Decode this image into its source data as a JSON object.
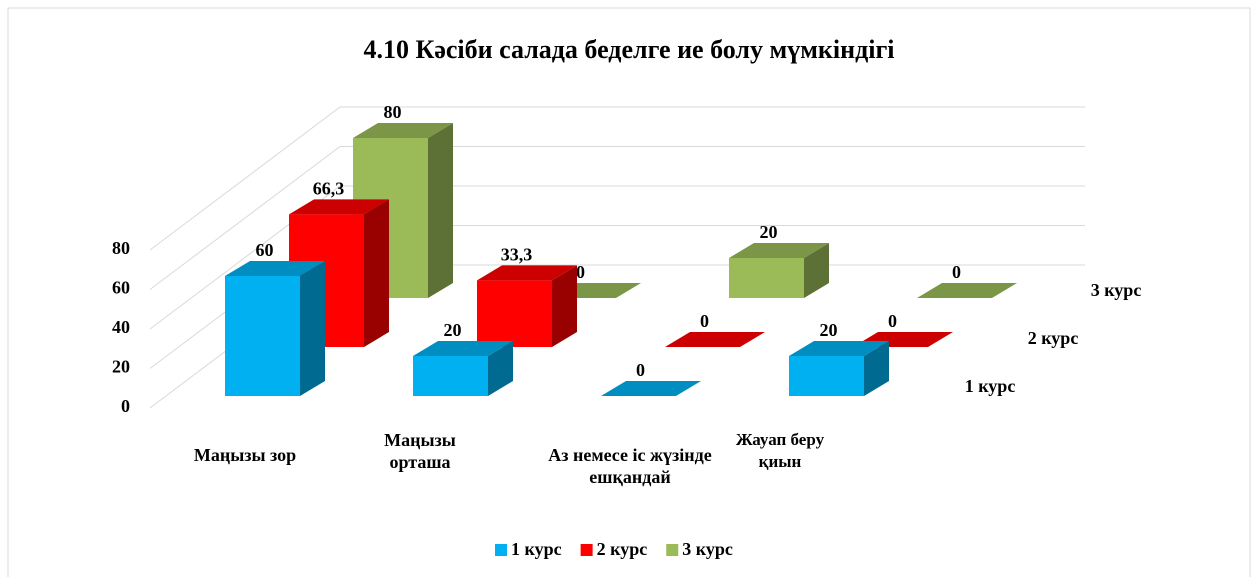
{
  "chart_data": {
    "type": "bar3d",
    "title": "4.10 Кәсіби салада беделге ие болу мүмкіндігі",
    "categories": [
      "Маңызы зор",
      "Маңызы орташа",
      "Аз немесе іс жүзінде ешқандай",
      "Жауап беру қиын"
    ],
    "series": [
      {
        "name": "1 курс",
        "color": "#00b0f0",
        "values": [
          60,
          20,
          0,
          20
        ]
      },
      {
        "name": "2 курс",
        "color": "#ff0000",
        "values": [
          66.3,
          33.3,
          0,
          0
        ],
        "value_labels": [
          "66,3",
          "33,3",
          "0",
          "0"
        ]
      },
      {
        "name": "3 курс",
        "color": "#9bbb59",
        "values": [
          80,
          0,
          20,
          0
        ]
      }
    ],
    "ylim": [
      0,
      80
    ],
    "yticks": [
      0,
      20,
      40,
      60,
      80
    ],
    "grid": true,
    "legend": "bottom"
  }
}
